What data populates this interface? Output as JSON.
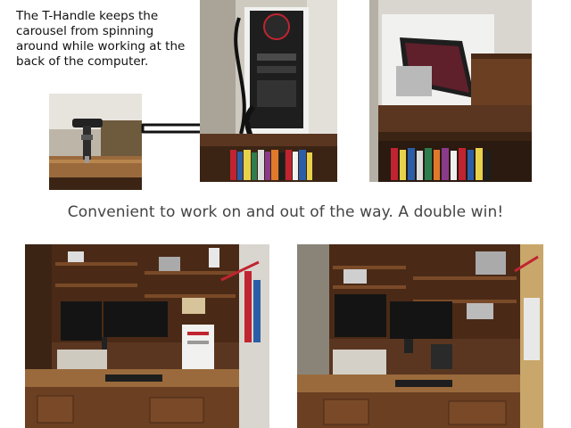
{
  "note_text": "The T-Handle keeps  the carousel from spinning around while working  at the back of the computer.",
  "caption": "Convenient to work on and out of the way. A double win!",
  "colors": {
    "wood_dark": "#3b2414",
    "wood_mid": "#6b3f22",
    "wood_light": "#9a6a3c",
    "case_white": "#f1f1ef",
    "wall": "#d9d6cf",
    "accent_red": "#c02430"
  }
}
